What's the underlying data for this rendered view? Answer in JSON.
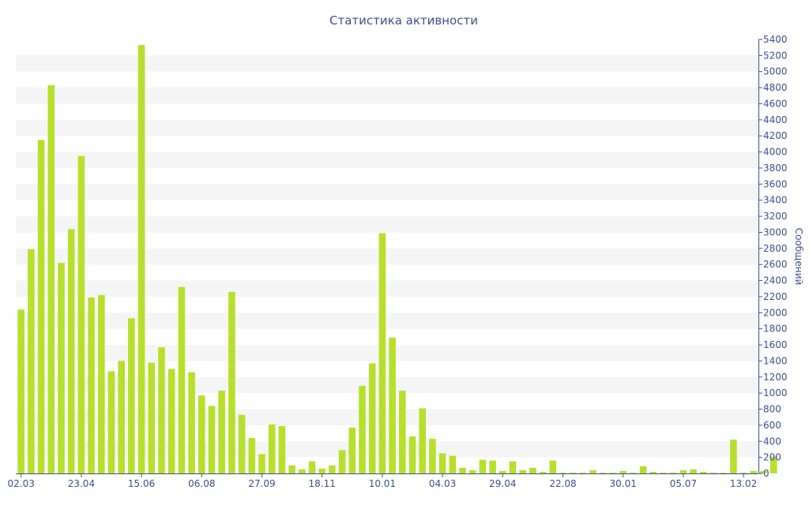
{
  "chart_data": {
    "type": "bar",
    "title": "Статистика активности",
    "ylabel": "Сообщений",
    "ylim": [
      0,
      5400
    ],
    "y_ticks": [
      0,
      200,
      400,
      600,
      800,
      1000,
      1200,
      1400,
      1600,
      1800,
      2000,
      2200,
      2400,
      2600,
      2800,
      3000,
      3200,
      3400,
      3600,
      3800,
      4000,
      4200,
      4400,
      4600,
      4800,
      5000,
      5200,
      5400
    ],
    "y_axis_position": "right",
    "grid": "alternating horizontal bands",
    "x_tick_labels": [
      {
        "label": "02.03",
        "index": 0
      },
      {
        "label": "23.04",
        "index": 6
      },
      {
        "label": "15.06",
        "index": 12
      },
      {
        "label": "06.08",
        "index": 18
      },
      {
        "label": "27.09",
        "index": 24
      },
      {
        "label": "18.11",
        "index": 30
      },
      {
        "label": "10.01",
        "index": 36
      },
      {
        "label": "04.03",
        "index": 42
      },
      {
        "label": "29.04",
        "index": 48
      },
      {
        "label": "22.08",
        "index": 54
      },
      {
        "label": "30.01",
        "index": 60
      },
      {
        "label": "05.07",
        "index": 66
      },
      {
        "label": "13.02",
        "index": 72
      }
    ],
    "values": [
      2040,
      2790,
      4150,
      4830,
      2620,
      3040,
      3950,
      2190,
      2220,
      1270,
      1400,
      1930,
      5330,
      1380,
      1570,
      1300,
      2320,
      1260,
      970,
      840,
      1030,
      2260,
      730,
      440,
      240,
      610,
      590,
      100,
      50,
      150,
      60,
      100,
      290,
      570,
      1090,
      1370,
      2990,
      1690,
      1030,
      460,
      810,
      430,
      250,
      220,
      70,
      40,
      170,
      160,
      30,
      150,
      40,
      70,
      20,
      160,
      10,
      10,
      10,
      40,
      10,
      10,
      30,
      10,
      90,
      20,
      10,
      10,
      40,
      50,
      20,
      10,
      10,
      420,
      10,
      30,
      30,
      210
    ],
    "colors": {
      "bar": "#b6e02b",
      "text": "#3d4f8f",
      "band": "#f5f5f5",
      "axis": "#3d4f8f"
    }
  }
}
